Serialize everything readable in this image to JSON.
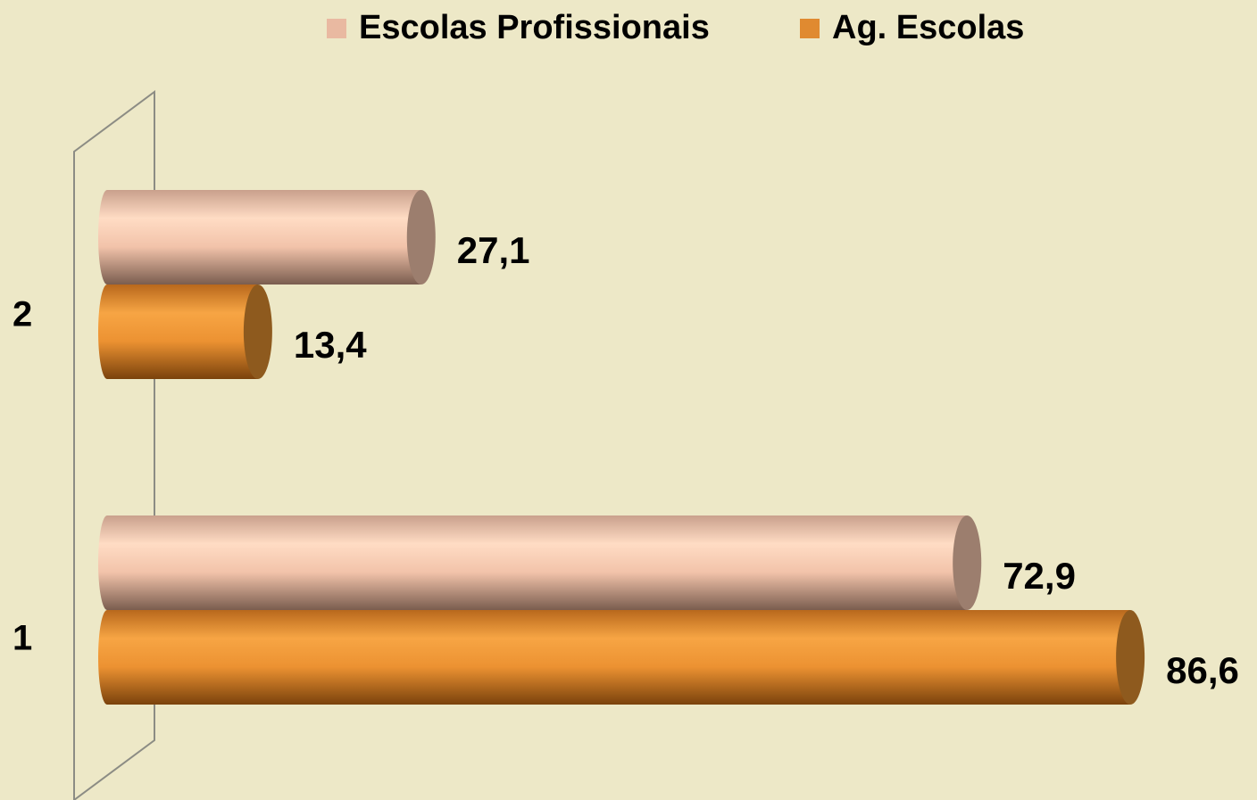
{
  "chart_data": {
    "type": "bar",
    "orientation": "horizontal",
    "categories": [
      "1",
      "2"
    ],
    "series": [
      {
        "name": "Escolas Profissionais",
        "color": "#e9b9a1",
        "values": [
          72.9,
          27.1
        ],
        "value_labels": [
          "72,9",
          "27,1"
        ]
      },
      {
        "name": "Ag. Escolas",
        "color": "#e08a30",
        "values": [
          86.6,
          13.4
        ],
        "value_labels": [
          "86,6",
          "13,4"
        ]
      }
    ],
    "legend": "top"
  }
}
